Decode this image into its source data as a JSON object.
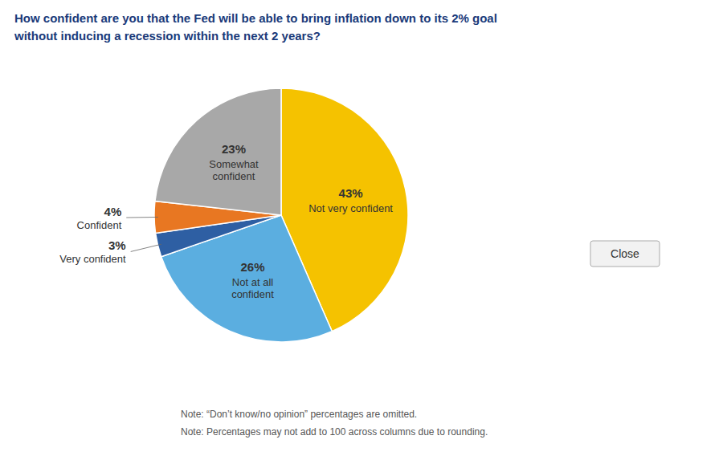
{
  "chart_data": {
    "type": "pie",
    "title": "How confident are you that the Fed will be able to bring inflation down to its 2% goal",
    "subtitle": "without inducing a recession within the next 2 years?",
    "categories": [
      "Not very confident",
      "Not at all\nconfident",
      "Very confident",
      "Confident",
      "Somewhat\nconfident"
    ],
    "values": [
      43,
      26,
      3,
      4,
      23
    ],
    "value_labels": [
      "43%",
      "26%",
      "3%",
      "4%",
      "23%"
    ],
    "colors": [
      "#F5C200",
      "#5BAEE0",
      "#2E5FA3",
      "#E87722",
      "#A8A8A8"
    ],
    "data_labels": true,
    "annotations": [
      "Note: “Don’t know/no opinion” percentages are omitted.",
      "Note: Percentages may not add to 100 across columns due to rounding.",
      "Close"
    ]
  }
}
